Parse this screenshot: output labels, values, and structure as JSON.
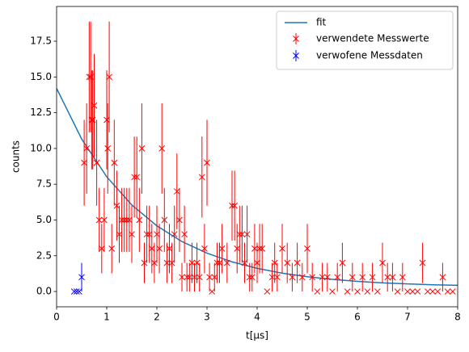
{
  "chart_data": {
    "type": "errorbar_scatter",
    "xlabel": "t[μs]",
    "ylabel": "counts",
    "xlim": [
      0,
      8
    ],
    "ylim": [
      -1.07,
      19.93
    ],
    "xticks": [
      0,
      1,
      2,
      3,
      4,
      5,
      6,
      7,
      8
    ],
    "yticks": [
      {
        "value": 0,
        "label": "0.0"
      },
      2.5,
      {
        "value": 5,
        "label": "5.0"
      },
      7.5,
      {
        "value": 10,
        "label": "10.0"
      },
      12.5,
      {
        "value": 15,
        "label": "15.0"
      },
      17.5
    ],
    "legend": "upper right",
    "fit": {
      "name": "fit",
      "color": "#1f77b4",
      "x": [
        0,
        0.5,
        1,
        1.5,
        2,
        2.5,
        3,
        3.5,
        4,
        4.5,
        5,
        5.5,
        6,
        6.5,
        7,
        7.5,
        8
      ],
      "values": [
        14.2,
        10.66,
        8.02,
        6.05,
        4.59,
        3.49,
        2.68,
        2.07,
        1.62,
        1.28,
        1.03,
        0.85,
        0.71,
        0.6,
        0.53,
        0.47,
        0.43
      ]
    },
    "series": [
      {
        "name": "verwendete Messwerte",
        "color": "red",
        "x": [
          0.55,
          0.6,
          0.65,
          0.68,
          0.7,
          0.72,
          0.75,
          0.8,
          0.85,
          0.9,
          0.95,
          1.0,
          1.02,
          1.05,
          1.1,
          1.15,
          1.2,
          1.25,
          1.3,
          1.35,
          1.4,
          1.45,
          1.5,
          1.55,
          1.6,
          1.65,
          1.7,
          1.75,
          1.8,
          1.85,
          1.9,
          1.95,
          2.0,
          2.05,
          2.1,
          2.15,
          2.2,
          2.25,
          2.3,
          2.35,
          2.4,
          2.45,
          2.5,
          2.55,
          2.6,
          2.65,
          2.7,
          2.75,
          2.8,
          2.85,
          2.9,
          2.95,
          3.0,
          3.05,
          3.1,
          3.15,
          3.2,
          3.25,
          3.3,
          3.4,
          3.5,
          3.55,
          3.6,
          3.65,
          3.7,
          3.75,
          3.8,
          3.85,
          3.9,
          3.95,
          4.0,
          4.05,
          4.1,
          4.2,
          4.3,
          4.35,
          4.4,
          4.5,
          4.6,
          4.7,
          4.8,
          4.9,
          5.0,
          5.1,
          5.2,
          5.3,
          5.4,
          5.5,
          5.6,
          5.7,
          5.8,
          5.9,
          6.0,
          6.1,
          6.2,
          6.3,
          6.4,
          6.5,
          6.6,
          6.7,
          6.8,
          6.9,
          7.0,
          7.1,
          7.2,
          7.3,
          7.4,
          7.5,
          7.6,
          7.7,
          7.8,
          7.9
        ],
        "values": [
          9,
          10,
          15,
          15,
          12,
          12,
          13,
          9,
          5,
          3,
          5,
          12,
          10,
          15,
          3,
          9,
          6,
          4,
          5,
          5,
          5,
          5,
          4,
          8,
          8,
          5,
          10,
          2,
          4,
          4,
          3,
          2,
          4,
          3,
          10,
          5,
          2,
          3,
          2,
          4,
          7,
          5,
          1,
          4,
          1,
          1,
          2,
          1,
          2,
          1,
          8,
          3,
          9,
          1,
          0,
          1,
          2,
          2,
          3,
          2,
          6,
          6,
          3,
          4,
          4,
          2,
          4,
          1,
          1,
          3,
          2,
          3,
          3,
          0,
          1,
          2,
          1,
          3,
          2,
          1,
          2,
          1,
          3,
          1,
          0,
          1,
          1,
          0,
          1,
          2,
          0,
          1,
          0,
          1,
          0,
          1,
          0,
          2,
          1,
          1,
          0,
          1,
          0,
          0,
          0,
          2,
          0,
          0,
          0,
          1,
          0,
          0
        ],
        "errors": [
          3,
          3.16,
          3.87,
          3.87,
          3.46,
          3.46,
          3.61,
          3,
          2.24,
          1.73,
          2.24,
          3.46,
          3.16,
          3.87,
          1.73,
          3,
          2.45,
          2,
          2.24,
          2.24,
          2.24,
          2.24,
          2,
          2.83,
          2.83,
          2.24,
          3.16,
          1.41,
          2,
          2,
          1.73,
          1.41,
          2,
          1.73,
          3.16,
          2.24,
          1.41,
          1.73,
          1.41,
          2,
          2.65,
          2.24,
          1,
          2,
          1,
          1,
          1.41,
          1,
          1.41,
          1,
          2.83,
          1.73,
          3,
          1,
          0,
          1,
          1.41,
          1.41,
          1.73,
          1.41,
          2.45,
          2.45,
          1.73,
          2,
          2,
          1.41,
          2,
          1,
          1,
          1.73,
          1.41,
          1.73,
          1.73,
          0,
          1,
          1.41,
          1,
          1.73,
          1.41,
          1,
          1.41,
          1,
          1.73,
          1,
          0,
          1,
          1,
          0,
          1,
          1.41,
          0,
          1,
          0,
          1,
          0,
          1,
          0,
          1.41,
          1,
          1,
          0,
          1,
          0,
          0,
          0,
          1.41,
          0,
          0,
          0,
          1,
          0,
          0
        ]
      },
      {
        "name": "verwofene Messdaten",
        "color": "blue",
        "x": [
          0.35,
          0.4,
          0.45,
          0.5
        ],
        "values": [
          0,
          0,
          0,
          1
        ],
        "errors": [
          0,
          0,
          0,
          1
        ]
      }
    ]
  }
}
